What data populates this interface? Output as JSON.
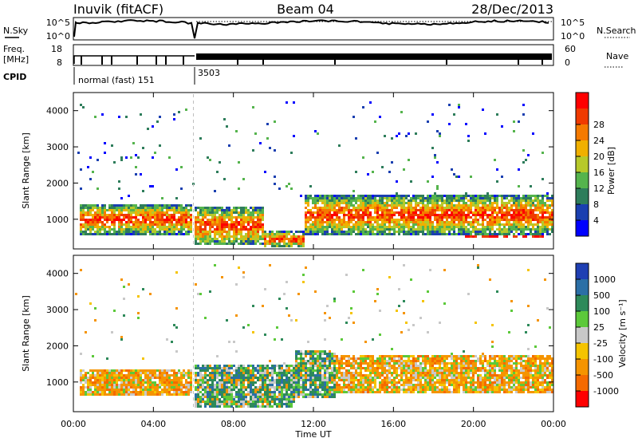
{
  "header": {
    "station": "Inuvik (fitACF)",
    "beam": "Beam 04",
    "date": "28/Dec/2013"
  },
  "top_panel": {
    "nsky_label": "N.Sky",
    "nsky_ticks": [
      "10^5",
      "10^0"
    ],
    "nsearch_label": "N.Search",
    "nsearch_ticks": [
      "10^5",
      "10^0"
    ],
    "freq_label": "Freq.",
    "freq_unit": "[MHz]",
    "freq_ticks": [
      "18",
      "8"
    ],
    "nave_label": "Nave",
    "nave_ticks": [
      "60",
      "0"
    ],
    "cpid_label": "CPID",
    "cpid_segments": [
      {
        "label": "normal (fast) 151",
        "start": "00:00",
        "end": "06:00"
      },
      {
        "label": "3503",
        "start": "06:00",
        "end": "24:00"
      }
    ]
  },
  "chart_data": [
    {
      "type": "heatmap",
      "name": "power",
      "ylabel": "Slant Range [km]",
      "xlabel": "",
      "x_ticks": [
        "00:00",
        "04:00",
        "08:00",
        "12:00",
        "16:00",
        "20:00",
        "00:00"
      ],
      "x_range_hours": [
        0,
        24
      ],
      "y_ticks": [
        1000,
        2000,
        3000,
        4000
      ],
      "ylim": [
        180,
        4500
      ],
      "colorbar": {
        "label": "Power [dB]",
        "ticks": [
          "4",
          "8",
          "12",
          "16",
          "20",
          "24",
          "28"
        ],
        "colors": [
          "#0000ff",
          "#1a3fb0",
          "#2e7d5b",
          "#55b44d",
          "#b7c92a",
          "#f0b000",
          "#f57a00",
          "#f03a00",
          "#ff0000"
        ]
      },
      "regions": [
        {
          "t": [
            0.2,
            5.9
          ],
          "r": [
            600,
            1450
          ],
          "level": "high"
        },
        {
          "t": [
            6.0,
            9.5
          ],
          "r": [
            300,
            1400
          ],
          "level": "high"
        },
        {
          "t": [
            9.5,
            11.5
          ],
          "r": [
            250,
            700
          ],
          "level": "high"
        },
        {
          "t": [
            11.5,
            24
          ],
          "r": [
            600,
            1700
          ],
          "level": "high"
        },
        {
          "t": [
            19.5,
            23.5
          ],
          "r": [
            500,
            1300
          ],
          "level": "max"
        }
      ]
    },
    {
      "type": "heatmap",
      "name": "velocity",
      "ylabel": "Slant Range [km]",
      "xlabel": "Time UT",
      "x_ticks": [
        "00:00",
        "04:00",
        "08:00",
        "12:00",
        "16:00",
        "20:00",
        "00:00"
      ],
      "x_range_hours": [
        0,
        24
      ],
      "y_ticks": [
        1000,
        2000,
        3000,
        4000
      ],
      "ylim": [
        180,
        4500
      ],
      "colorbar": {
        "label": "Velocity [m s⁻¹]",
        "ticks": [
          "1000",
          "500",
          "100",
          "25",
          "-25",
          "-100",
          "-500",
          "-1000"
        ],
        "colors": [
          "#1f3fb3",
          "#2b6fa6",
          "#2e8a5a",
          "#5cc93a",
          "#c8c8c8",
          "#f5c400",
          "#f59400",
          "#f56a00",
          "#ff0000"
        ]
      },
      "regions": [
        {
          "t": [
            0.2,
            5.9
          ],
          "r": [
            650,
            1400
          ],
          "tone": "orange"
        },
        {
          "t": [
            6.0,
            11.0
          ],
          "r": [
            300,
            1500
          ],
          "tone": "green"
        },
        {
          "t": [
            11.0,
            13.0
          ],
          "r": [
            600,
            1900
          ],
          "tone": "green"
        },
        {
          "t": [
            13.0,
            24
          ],
          "r": [
            700,
            1800
          ],
          "tone": "orange"
        }
      ]
    }
  ],
  "colors": {
    "axis": "#000000",
    "divider": "#bfbfbf"
  }
}
